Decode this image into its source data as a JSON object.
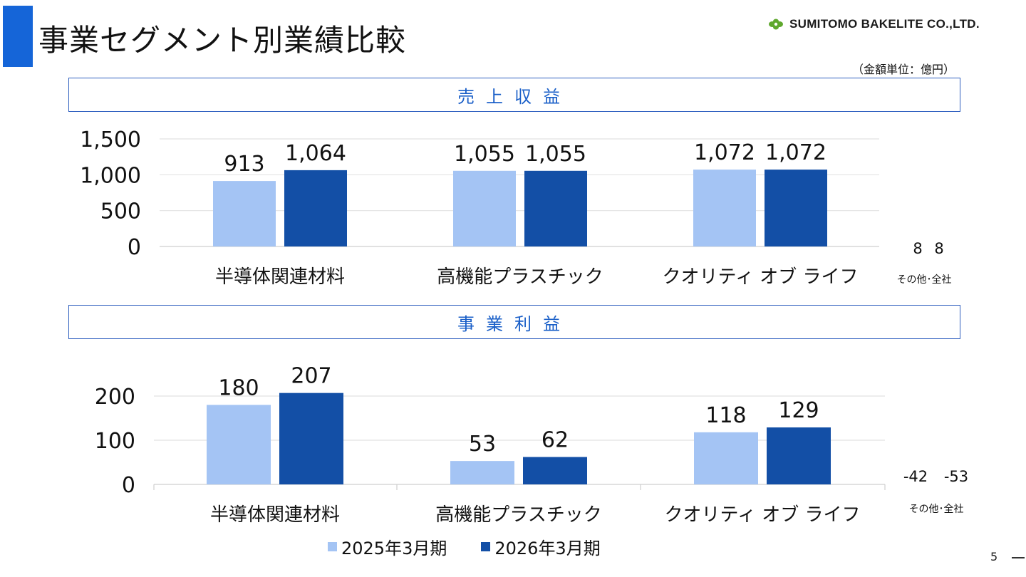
{
  "header": {
    "title": "事業セグメント別業績比較",
    "company": "SUMITOMO BAKELITE CO.,LTD.",
    "unit_note": "（金額単位：億円）"
  },
  "sections": {
    "revenue_label": "売上収益",
    "profit_label": "事業利益"
  },
  "colors": {
    "fy2025": "#a4c4f4",
    "fy2026": "#134fa6",
    "accent": "#1565d8",
    "logo_green": "#5fa82e"
  },
  "legend": {
    "fy2025": "2025年3月期",
    "fy2026": "2026年3月期"
  },
  "page_number": "5",
  "chart_data": [
    {
      "type": "bar",
      "title": "売上収益",
      "categories": [
        "半導体関連材料",
        "高機能プラスチック",
        "クオリティ オブ ライフ"
      ],
      "series": [
        {
          "name": "2025年3月期",
          "values": [
            913,
            1055,
            1072
          ]
        },
        {
          "name": "2026年3月期",
          "values": [
            1064,
            1055,
            1072
          ]
        }
      ],
      "ylim": [
        0,
        1500
      ],
      "yticks": [
        "0",
        "500",
        "1,000",
        "1,500"
      ],
      "value_labels": [
        [
          "913",
          "1,055",
          "1,072"
        ],
        [
          "1,064",
          "1,055",
          "1,072"
        ]
      ],
      "grid": true,
      "legend": "bottom",
      "other": {
        "label": "その他･全社",
        "values": [
          "8",
          "8"
        ]
      }
    },
    {
      "type": "bar",
      "title": "事業利益",
      "categories": [
        "半導体関連材料",
        "高機能プラスチック",
        "クオリティ オブ ライフ"
      ],
      "series": [
        {
          "name": "2025年3月期",
          "values": [
            180,
            53,
            118
          ]
        },
        {
          "name": "2026年3月期",
          "values": [
            207,
            62,
            129
          ]
        }
      ],
      "ylim": [
        0,
        200
      ],
      "yticks": [
        "0",
        "100",
        "200"
      ],
      "value_labels": [
        [
          "180",
          "53",
          "118"
        ],
        [
          "207",
          "62",
          "129"
        ]
      ],
      "grid": true,
      "legend": "bottom",
      "other": {
        "label": "その他･全社",
        "values": [
          "-42",
          "-53"
        ]
      }
    }
  ]
}
